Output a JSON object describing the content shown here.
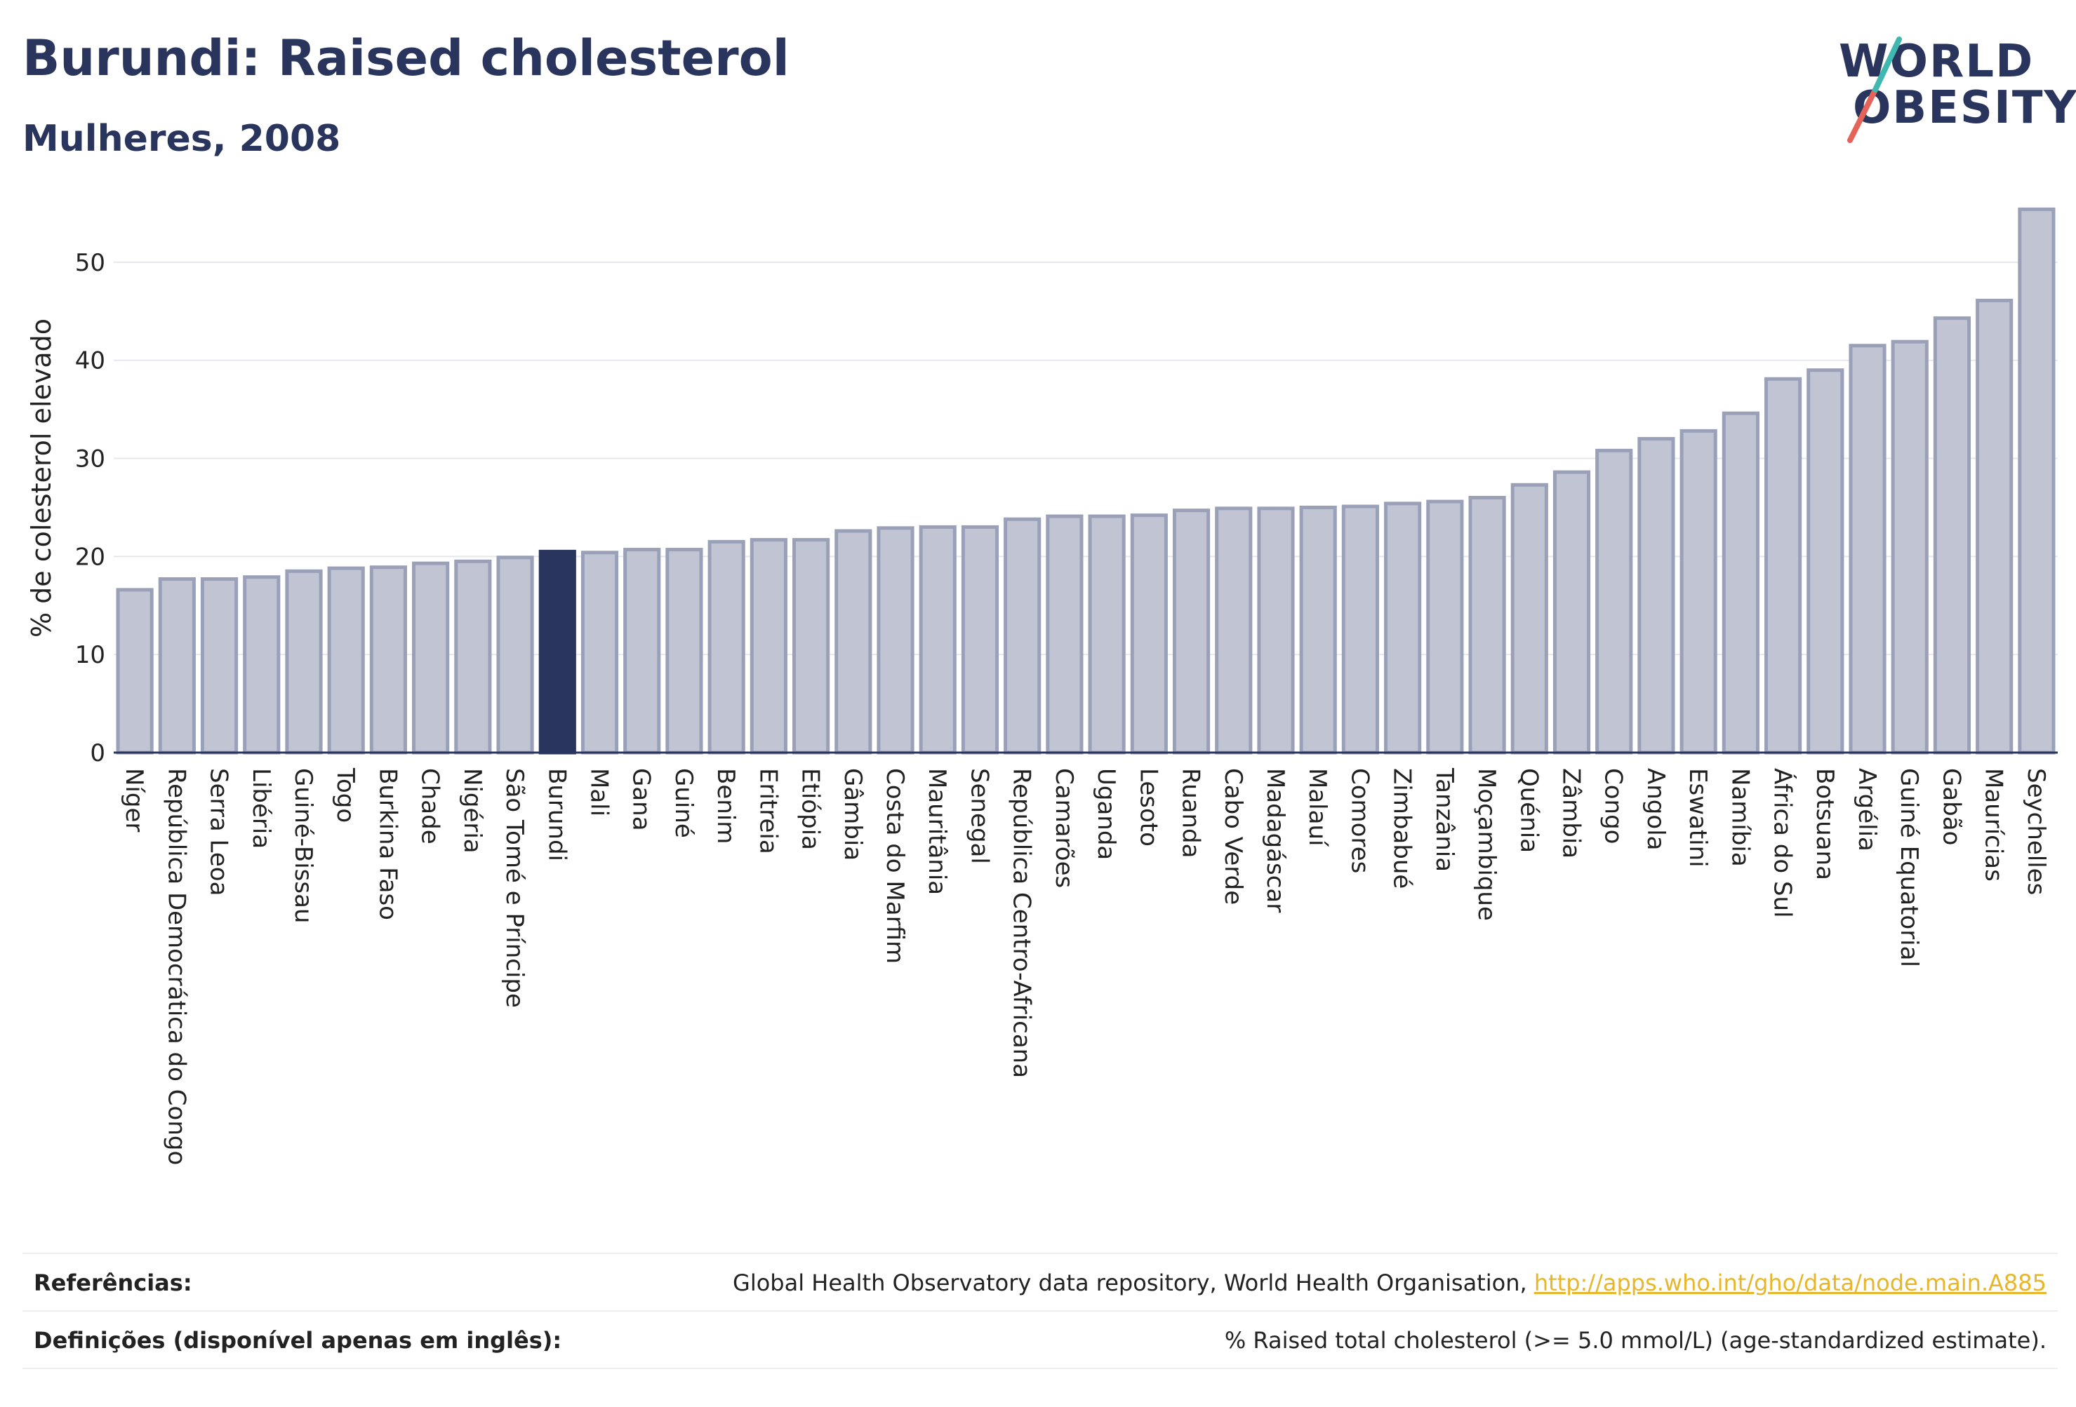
{
  "header": {
    "title": "Burundi: Raised cholesterol",
    "subtitle": "Mulheres, 2008"
  },
  "logo": {
    "line1": "WORLD",
    "line2": "OBESITY"
  },
  "colors": {
    "bar": "#c0c4d3",
    "bar_stroke": "#9aa0b8",
    "highlight": "#2a355e",
    "link": "#e8b62b",
    "logo_slash_red": "#e4645a",
    "logo_slash_teal": "#3fb8b0"
  },
  "chart_data": {
    "type": "bar",
    "ylabel": "% de colesterol elevado",
    "ylim": [
      0,
      56
    ],
    "yticks": [
      0,
      10,
      20,
      30,
      40,
      50
    ],
    "grid": true,
    "highlight": "Burundi",
    "categories": [
      "Níger",
      "República Democrática do Congo",
      "Serra Leoa",
      "Libéria",
      "Guiné-Bissau",
      "Togo",
      "Burkina Faso",
      "Chade",
      "Nigéria",
      "São Tomé e Príncipe",
      "Burundi",
      "Mali",
      "Gana",
      "Guiné",
      "Benim",
      "Eritreia",
      "Etiópia",
      "Gâmbia",
      "Costa do Marfim",
      "Mauritânia",
      "Senegal",
      "República Centro-Africana",
      "Camarões",
      "Uganda",
      "Lesoto",
      "Ruanda",
      "Cabo Verde",
      "Madagáscar",
      "Malauí",
      "Comores",
      "Zimbabué",
      "Tanzânia",
      "Moçambique",
      "Quénia",
      "Zâmbia",
      "Congo",
      "Angola",
      "Eswatini",
      "Namíbia",
      "África do Sul",
      "Botsuana",
      "Argélia",
      "Guiné Equatorial",
      "Gabão",
      "Maurícias",
      "Seychelles"
    ],
    "values": [
      16.6,
      17.7,
      17.7,
      17.9,
      18.5,
      18.8,
      18.9,
      19.3,
      19.5,
      19.9,
      20.5,
      20.4,
      20.7,
      20.7,
      21.5,
      21.7,
      21.7,
      22.6,
      22.9,
      23.0,
      23.0,
      23.8,
      24.1,
      24.1,
      24.2,
      24.7,
      24.9,
      24.9,
      25.0,
      25.1,
      25.4,
      25.6,
      26.0,
      27.3,
      28.6,
      30.8,
      32.0,
      32.8,
      34.6,
      38.1,
      39.0,
      41.5,
      41.9,
      44.3,
      46.1,
      55.4
    ]
  },
  "footer": {
    "references_label": "Referências:",
    "references_text": "Global Health Observatory data repository, World Health Organisation, ",
    "references_link": "http://apps.who.int/gho/data/node.main.A885",
    "definitions_label": "Definições (disponível apenas em inglês):",
    "definitions_text": "% Raised total cholesterol (>= 5.0 mmol/L) (age-standardized estimate)."
  }
}
